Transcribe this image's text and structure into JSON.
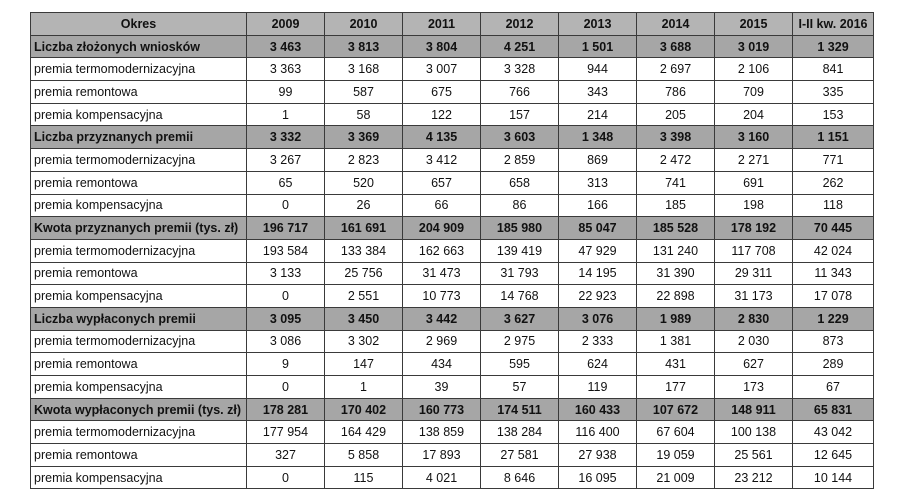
{
  "table": {
    "headers": [
      "Okres",
      "2009",
      "2010",
      "2011",
      "2012",
      "2013",
      "2014",
      "2015",
      "I-II kw. 2016"
    ],
    "rows": [
      {
        "type": "group",
        "label": "Liczba złożonych wniosków",
        "values": [
          "3 463",
          "3 813",
          "3 804",
          "4 251",
          "1 501",
          "3 688",
          "3 019",
          "1 329"
        ]
      },
      {
        "type": "sub",
        "label": "premia termomodernizacyjna",
        "values": [
          "3 363",
          "3 168",
          "3 007",
          "3 328",
          "944",
          "2 697",
          "2 106",
          "841"
        ]
      },
      {
        "type": "sub",
        "label": "premia remontowa",
        "values": [
          "99",
          "587",
          "675",
          "766",
          "343",
          "786",
          "709",
          "335"
        ]
      },
      {
        "type": "sub",
        "label": "premia kompensacyjna",
        "values": [
          "1",
          "58",
          "122",
          "157",
          "214",
          "205",
          "204",
          "153"
        ]
      },
      {
        "type": "group",
        "label": "Liczba przyznanych premii",
        "values": [
          "3 332",
          "3 369",
          "4 135",
          "3 603",
          "1 348",
          "3 398",
          "3 160",
          "1 151"
        ]
      },
      {
        "type": "sub",
        "label": "premia termomodernizacyjna",
        "values": [
          "3 267",
          "2 823",
          "3 412",
          "2 859",
          "869",
          "2 472",
          "2 271",
          "771"
        ]
      },
      {
        "type": "sub",
        "label": "premia remontowa",
        "values": [
          "65",
          "520",
          "657",
          "658",
          "313",
          "741",
          "691",
          "262"
        ]
      },
      {
        "type": "sub",
        "label": "premia kompensacyjna",
        "values": [
          "0",
          "26",
          "66",
          "86",
          "166",
          "185",
          "198",
          "118"
        ]
      },
      {
        "type": "group",
        "label": "Kwota przyznanych premii (tys. zł)",
        "values": [
          "196 717",
          "161 691",
          "204 909",
          "185 980",
          "85 047",
          "185 528",
          "178 192",
          "70 445"
        ]
      },
      {
        "type": "sub",
        "label": "premia termomodernizacyjna",
        "values": [
          "193 584",
          "133 384",
          "162 663",
          "139 419",
          "47 929",
          "131 240",
          "117 708",
          "42 024"
        ]
      },
      {
        "type": "sub",
        "label": "premia remontowa",
        "values": [
          "3 133",
          "25 756",
          "31 473",
          "31 793",
          "14 195",
          "31 390",
          "29 311",
          "11 343"
        ]
      },
      {
        "type": "sub",
        "label": "premia kompensacyjna",
        "values": [
          "0",
          "2 551",
          "10 773",
          "14 768",
          "22 923",
          "22 898",
          "31 173",
          "17 078"
        ]
      },
      {
        "type": "group",
        "label": "Liczba wypłaconych premii",
        "values": [
          "3 095",
          "3 450",
          "3 442",
          "3 627",
          "3 076",
          "1 989",
          "2 830",
          "1 229"
        ]
      },
      {
        "type": "sub",
        "label": "premia termomodernizacyjna",
        "values": [
          "3 086",
          "3 302",
          "2 969",
          "2 975",
          "2 333",
          "1 381",
          "2 030",
          "873"
        ]
      },
      {
        "type": "sub",
        "label": "premia remontowa",
        "values": [
          "9",
          "147",
          "434",
          "595",
          "624",
          "431",
          "627",
          "289"
        ]
      },
      {
        "type": "sub",
        "label": "premia kompensacyjna",
        "values": [
          "0",
          "1",
          "39",
          "57",
          "119",
          "177",
          "173",
          "67"
        ]
      },
      {
        "type": "group",
        "label": "Kwota wypłaconych premii (tys. zł)",
        "values": [
          "178 281",
          "170 402",
          "160 773",
          "174 511",
          "160 433",
          "107 672",
          "148 911",
          "65 831"
        ]
      },
      {
        "type": "sub",
        "label": "premia termomodernizacyjna",
        "values": [
          "177 954",
          "164 429",
          "138 859",
          "138 284",
          "116 400",
          "67 604",
          "100 138",
          "43 042"
        ]
      },
      {
        "type": "sub",
        "label": "premia remontowa",
        "values": [
          "327",
          "5 858",
          "17 893",
          "27 581",
          "27 938",
          "19 059",
          "25 561",
          "12 645"
        ]
      },
      {
        "type": "sub",
        "label": "premia kompensacyjna",
        "values": [
          "0",
          "115",
          "4 021",
          "8 646",
          "16 095",
          "21 009",
          "23 212",
          "10 144"
        ]
      }
    ]
  },
  "colors": {
    "header_bg": "#b4b4b4",
    "group_bg": "#a6a6a6",
    "sub_bg": "#ffffff",
    "border": "#3a3a3a"
  }
}
